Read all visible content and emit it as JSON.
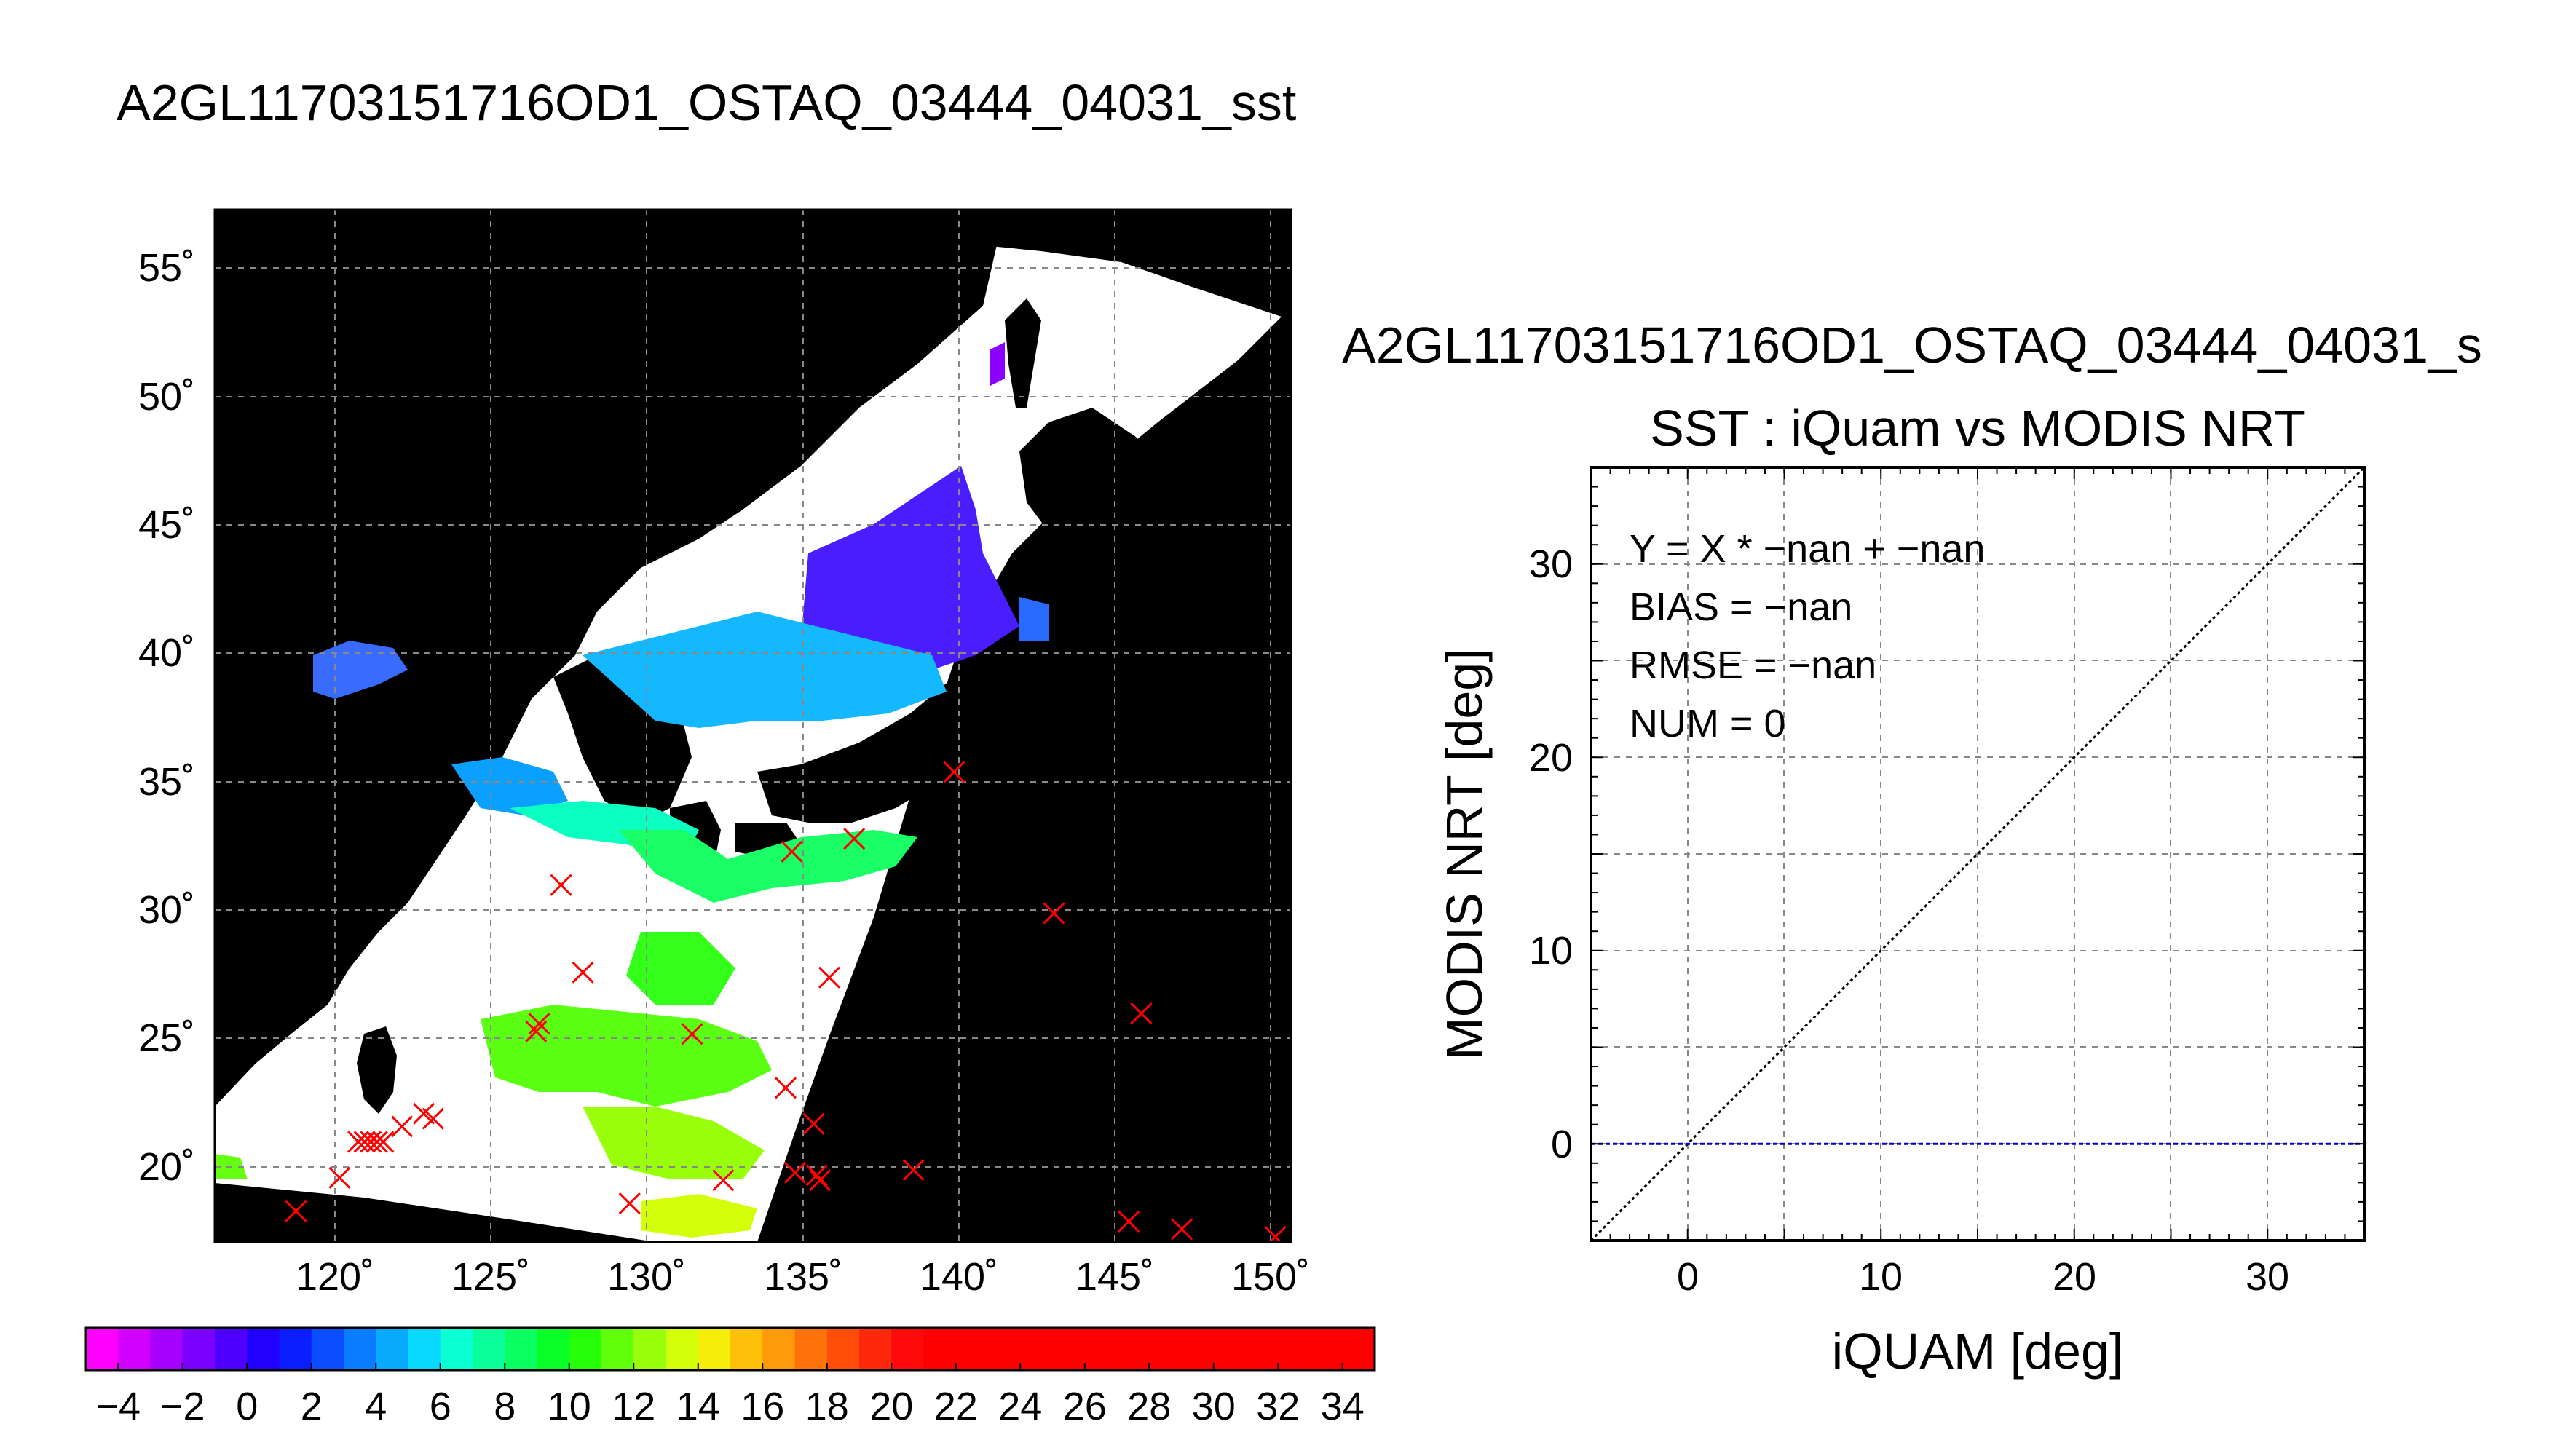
{
  "figure": {
    "title": "A2GL11703151716OD1_OSTAQ_03444_04031_sst"
  },
  "chart_data": [
    {
      "type": "scatter",
      "subtype": "geographic-map",
      "description_panel": "left",
      "x_ticks": [
        "120˚",
        "125˚",
        "130˚",
        "135˚",
        "140˚",
        "145˚",
        "150˚"
      ],
      "y_ticks": [
        "20˚",
        "25˚",
        "30˚",
        "35˚",
        "40˚",
        "45˚",
        "50˚",
        "55˚"
      ],
      "lon_range": [
        116,
        150.5
      ],
      "lat_range": [
        17.2,
        57.4
      ],
      "grid": true,
      "land_color": "#000000",
      "no_data_color": "#ffffff",
      "marker_color": "#ff0000",
      "points": [
        {
          "x": 118.6,
          "y": 18.4
        },
        {
          "x": 120.0,
          "y": 19.7
        },
        {
          "x": 120.6,
          "y": 21.1
        },
        {
          "x": 120.8,
          "y": 21.1
        },
        {
          "x": 121.0,
          "y": 21.1
        },
        {
          "x": 121.2,
          "y": 21.1
        },
        {
          "x": 121.4,
          "y": 21.1
        },
        {
          "x": 122.0,
          "y": 21.7
        },
        {
          "x": 122.7,
          "y": 22.2
        },
        {
          "x": 123.0,
          "y": 22.0
        },
        {
          "x": 126.3,
          "y": 25.4
        },
        {
          "x": 126.4,
          "y": 25.7
        },
        {
          "x": 127.1,
          "y": 31.1
        },
        {
          "x": 127.8,
          "y": 27.7
        },
        {
          "x": 129.3,
          "y": 18.7
        },
        {
          "x": 131.3,
          "y": 25.3
        },
        {
          "x": 132.3,
          "y": 19.6
        },
        {
          "x": 134.3,
          "y": 23.2
        },
        {
          "x": 134.5,
          "y": 32.4
        },
        {
          "x": 134.6,
          "y": 19.9
        },
        {
          "x": 135.2,
          "y": 21.8
        },
        {
          "x": 135.3,
          "y": 19.8
        },
        {
          "x": 135.4,
          "y": 19.6
        },
        {
          "x": 135.7,
          "y": 27.5
        },
        {
          "x": 136.5,
          "y": 32.9
        },
        {
          "x": 138.4,
          "y": 20.0
        },
        {
          "x": 139.7,
          "y": 35.5
        },
        {
          "x": 142.9,
          "y": 30.0
        },
        {
          "x": 145.3,
          "y": 18.0
        },
        {
          "x": 145.7,
          "y": 26.1
        },
        {
          "x": 147.0,
          "y": 17.7
        },
        {
          "x": 150.0,
          "y": 17.4
        }
      ]
    },
    {
      "type": "heatmap",
      "subtype": "colorbar",
      "tick_labels": [
        "−4",
        "−2",
        "0",
        "2",
        "4",
        "6",
        "8",
        "10",
        "12",
        "14",
        "16",
        "18",
        "20",
        "22",
        "24",
        "26",
        "28",
        "30",
        "32",
        "34"
      ],
      "range": [
        -5,
        35
      ],
      "colors": [
        "#ff00ff",
        "#d200ff",
        "#a600ff",
        "#7a00ff",
        "#4e00ff",
        "#2200ff",
        "#0a1eff",
        "#0a4dff",
        "#0a7cff",
        "#0aabff",
        "#0ad9ff",
        "#0affd4",
        "#0aff9a",
        "#0aff60",
        "#0aff26",
        "#26ff0a",
        "#60ff0a",
        "#9aff0a",
        "#d4ff0a",
        "#f5ee0a",
        "#ffc00a",
        "#ff9a0a",
        "#ff740a",
        "#ff4e0a",
        "#ff280a",
        "#ff0a0a",
        "#ff0000",
        "#ff0000",
        "#ff0000",
        "#ff0000",
        "#ff0000",
        "#ff0000",
        "#ff0000",
        "#ff0000",
        "#ff0000",
        "#ff0000",
        "#ff0000",
        "#ff0000",
        "#ff0000",
        "#ff0000"
      ]
    },
    {
      "type": "scatter",
      "subtitle": "A2GL11703151716OD1_OSTAQ_03444_04031_s",
      "title": "SST : iQuam vs MODIS NRT",
      "xlabel": "iQUAM [deg]",
      "ylabel": "MODIS NRT [deg]",
      "xlim": [
        -5,
        35
      ],
      "ylim": [
        -5,
        35
      ],
      "x_ticks": [
        "0",
        "10",
        "20",
        "30"
      ],
      "y_ticks": [
        "0",
        "10",
        "20",
        "30"
      ],
      "grid": true,
      "reference_line": {
        "type": "y=x",
        "color": "#000000",
        "style": "dotted"
      },
      "zero_line": {
        "y": 0,
        "color": "#0000cc",
        "style": "dashed"
      },
      "points": [],
      "stats": [
        "Y = X * −nan + −nan",
        "BIAS = −nan",
        "RMSE = −nan",
        "NUM = 0"
      ]
    }
  ]
}
